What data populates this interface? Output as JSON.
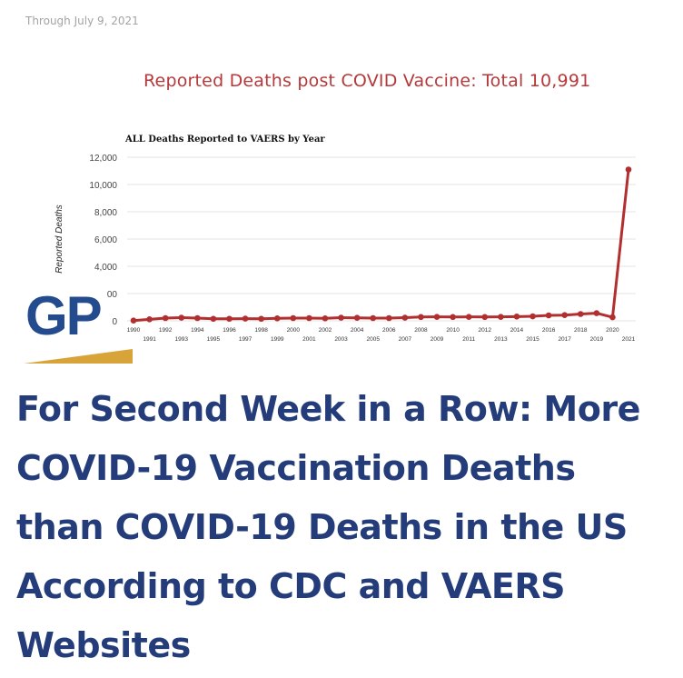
{
  "date_text": "Through July 9, 2021",
  "subtitle": "Reported Deaths post COVID Vaccine: Total 10,991",
  "logo": {
    "text": "GP",
    "brand_color": "#234b8e",
    "swoosh_color": "#d8a43a"
  },
  "headline_lines": [
    "For Second Week in a Row: More",
    "COVID-19 Vaccination Deaths",
    "than COVID-19 Deaths in the US",
    "According to CDC and VAERS",
    "Websites"
  ],
  "colors": {
    "headline": "#243d7a",
    "subtitle": "#b5393a",
    "series": "#b22f2f"
  },
  "chart_data": {
    "type": "line",
    "title": "ALL Deaths Reported to VAERS by Year",
    "ylabel": "Reported Deaths",
    "xlabel": "",
    "ylim": [
      0,
      12000
    ],
    "yticks": [
      "0",
      "00",
      "4,000",
      "6,000",
      "8,000",
      "10,000",
      "12,000"
    ],
    "grid": true,
    "x": [
      "1990",
      "1991",
      "1992",
      "1993",
      "1994",
      "1995",
      "1996",
      "1997",
      "1998",
      "1999",
      "2000",
      "2001",
      "2002",
      "2003",
      "2004",
      "2005",
      "2006",
      "2007",
      "2008",
      "2009",
      "2010",
      "2011",
      "2012",
      "2013",
      "2014",
      "2015",
      "2016",
      "2017",
      "2018",
      "2019",
      "2020",
      "2021"
    ],
    "series": [
      {
        "values": [
          20,
          110,
          200,
          230,
          200,
          150,
          150,
          160,
          150,
          180,
          200,
          200,
          180,
          230,
          220,
          200,
          200,
          230,
          280,
          290,
          280,
          290,
          280,
          290,
          310,
          330,
          400,
          420,
          500,
          560,
          260,
          11100
        ]
      }
    ]
  }
}
